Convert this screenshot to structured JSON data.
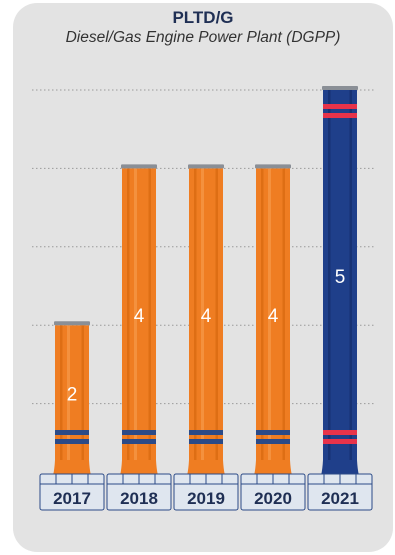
{
  "chart_data": {
    "type": "bar",
    "title": "PLTD/G",
    "subtitle": "Diesel/Gas Engine Power Plant (DGPP)",
    "categories": [
      "2017",
      "2018",
      "2019",
      "2020",
      "2021"
    ],
    "values": [
      2,
      4,
      4,
      4,
      5
    ],
    "ylim": [
      0,
      5
    ],
    "grid": true,
    "highlight_category": "2021",
    "colors": {
      "bar": "#ef7d22",
      "bar_shade": "#d96a12",
      "bar_light": "#f79a4a",
      "stripe": "#2b4a87",
      "highlight_bar": "#1f3f8a",
      "highlight_shade": "#15306e",
      "highlight_stripe": "#e8334a",
      "cap": "#8a8f96",
      "grid": "#9a9a9a",
      "label_bg": "#dfe6ef",
      "label_text": "#1f2f54"
    }
  }
}
